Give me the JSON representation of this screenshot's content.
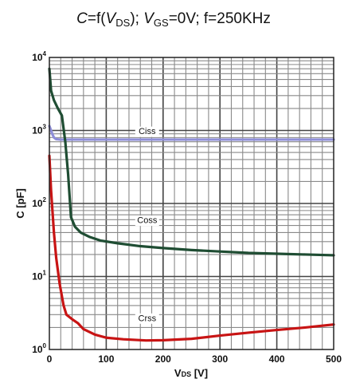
{
  "chart_data": {
    "type": "line",
    "title": {
      "prefix": "C",
      "eq": "=f(",
      "v1": "V",
      "v1_sub": "DS",
      "mid": "); ",
      "v2": "V",
      "v2_sub": "GS",
      "suffix": "=0V; f=250KHz"
    },
    "xlabel": {
      "main": "V",
      "sub": "DS",
      "rest": " [V]"
    },
    "ylabel": "C [pF]",
    "xlim": [
      0,
      500
    ],
    "ylim_exponent": [
      0,
      4
    ],
    "yscale": "log",
    "grid": true,
    "x_ticks": [
      "0",
      "100",
      "200",
      "300",
      "400",
      "500"
    ],
    "y_ticks": [
      {
        "base": "10",
        "exp": "0"
      },
      {
        "base": "10",
        "exp": "1"
      },
      {
        "base": "10",
        "exp": "2"
      },
      {
        "base": "10",
        "exp": "3"
      },
      {
        "base": "10",
        "exp": "4"
      }
    ],
    "series": [
      {
        "name": "Ciss",
        "color": "#8f8fd8",
        "x": [
          0,
          2,
          5,
          8,
          12,
          20,
          40,
          80,
          150,
          300,
          500
        ],
        "y": [
          1150,
          1050,
          900,
          800,
          760,
          750,
          750,
          750,
          750,
          750,
          750
        ]
      },
      {
        "name": "Coss",
        "color": "#1f4d33",
        "x": [
          0,
          3,
          8,
          15,
          22,
          28,
          33,
          38,
          45,
          55,
          70,
          90,
          120,
          160,
          200,
          250,
          300,
          350,
          400,
          450,
          500
        ],
        "y": [
          7000,
          3500,
          2600,
          2000,
          1600,
          700,
          250,
          65,
          48,
          40,
          35,
          31,
          28.5,
          26,
          24.5,
          23,
          22,
          21,
          20.5,
          20,
          19.5
        ]
      },
      {
        "name": "Crss",
        "color": "#c81414",
        "x": [
          0,
          3,
          8,
          12,
          18,
          25,
          30,
          40,
          50,
          60,
          80,
          100,
          130,
          170,
          200,
          250,
          300,
          350,
          400,
          450,
          500
        ],
        "y": [
          450,
          150,
          40,
          18,
          8,
          4,
          3,
          2.6,
          2.3,
          1.9,
          1.6,
          1.45,
          1.38,
          1.33,
          1.34,
          1.4,
          1.55,
          1.7,
          1.85,
          2.0,
          2.2
        ]
      }
    ],
    "annotations": [
      {
        "text": "Ciss",
        "series": "Ciss",
        "x": 172,
        "y": 960
      },
      {
        "text": "Coss",
        "series": "Coss",
        "x": 172,
        "y": 58
      },
      {
        "text": "Crss",
        "series": "Crss",
        "x": 172,
        "y": 2.65
      }
    ]
  }
}
